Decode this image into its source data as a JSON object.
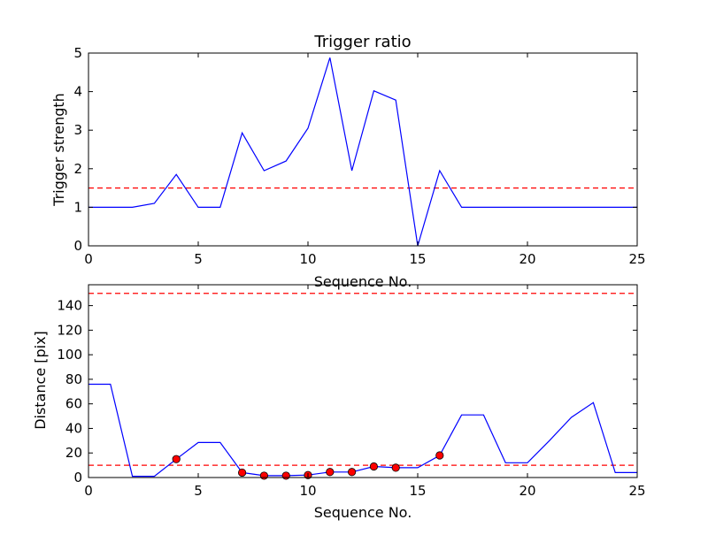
{
  "chart_data": [
    {
      "type": "line",
      "title": "Trigger ratio",
      "xlabel": "Sequence No.",
      "ylabel": "Trigger strength",
      "xlim": [
        0,
        25
      ],
      "ylim": [
        0,
        5
      ],
      "xticks": [
        0,
        5,
        10,
        15,
        20,
        25
      ],
      "yticks": [
        0,
        1,
        2,
        3,
        4,
        5
      ],
      "x_tick_labels": [
        "0",
        "5",
        "10",
        "15",
        "20",
        "25"
      ],
      "y_tick_labels": [
        "0",
        "1",
        "2",
        "3",
        "4",
        "5"
      ],
      "grid": false,
      "series": [
        {
          "color": "#0000ff",
          "x": [
            0,
            1,
            2,
            3,
            4,
            5,
            6,
            7,
            8,
            9,
            10,
            11,
            12,
            13,
            14,
            15,
            16,
            17,
            18,
            19,
            20,
            21,
            22,
            23,
            24,
            25
          ],
          "values": [
            1.0,
            1.0,
            1.0,
            1.1,
            1.85,
            1.0,
            1.0,
            2.93,
            1.95,
            2.2,
            3.05,
            4.88,
            1.95,
            4.02,
            3.78,
            0.0,
            1.95,
            1.0,
            1.0,
            1.0,
            1.0,
            1.0,
            1.0,
            1.0,
            1.0,
            1.0
          ]
        }
      ],
      "reference_lines": [
        {
          "y": 1.5,
          "color": "#ff0000",
          "style": "dashed"
        }
      ]
    },
    {
      "type": "line",
      "xlabel": "Sequence No.",
      "ylabel": "Distance [pix]",
      "xlim": [
        0,
        25
      ],
      "ylim": [
        0,
        157
      ],
      "xticks": [
        0,
        5,
        10,
        15,
        20,
        25
      ],
      "yticks": [
        0,
        20,
        40,
        60,
        80,
        100,
        120,
        140
      ],
      "x_tick_labels": [
        "0",
        "5",
        "10",
        "15",
        "20",
        "25"
      ],
      "y_tick_labels": [
        "0",
        "20",
        "40",
        "60",
        "80",
        "100",
        "120",
        "140"
      ],
      "grid": false,
      "series": [
        {
          "color": "#0000ff",
          "x": [
            0,
            1,
            2,
            3,
            4,
            5,
            6,
            7,
            8,
            9,
            10,
            11,
            12,
            13,
            14,
            15,
            16,
            17,
            18,
            19,
            20,
            21,
            22,
            23,
            24,
            25
          ],
          "values": [
            76,
            76,
            1,
            1,
            15,
            28.5,
            28.5,
            4,
            1.5,
            1.5,
            2,
            4.5,
            4.5,
            9,
            8,
            8,
            18,
            51,
            51,
            12,
            12,
            30,
            49,
            61,
            4,
            4
          ]
        }
      ],
      "markers": {
        "color": "#ff0000",
        "x": [
          4,
          7,
          8,
          9,
          10,
          11,
          12,
          13,
          14,
          16
        ],
        "values": [
          15,
          4,
          1.5,
          1.5,
          2,
          4.5,
          4.5,
          9,
          8,
          18
        ]
      },
      "reference_lines": [
        {
          "y": 150,
          "color": "#ff0000",
          "style": "dashed"
        },
        {
          "y": 10,
          "color": "#ff0000",
          "style": "dashed"
        }
      ]
    }
  ]
}
